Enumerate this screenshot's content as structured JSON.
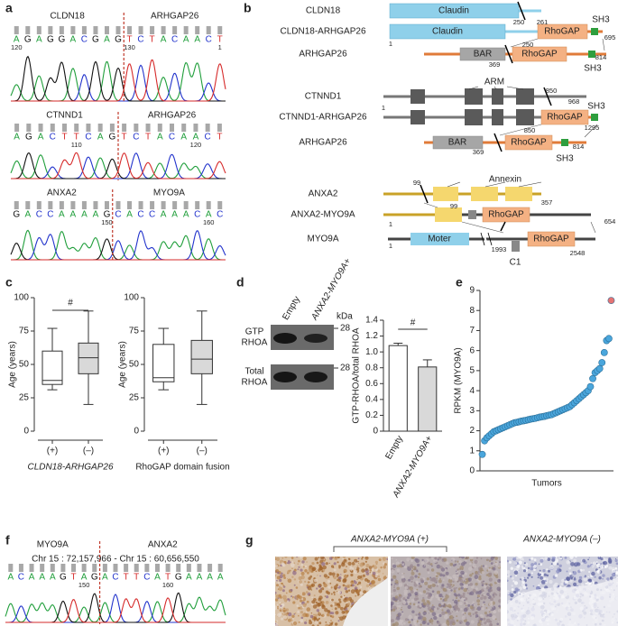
{
  "a": {
    "label": "a",
    "blocks": [
      {
        "left": "CLDN18",
        "right": "ARHGAP26",
        "sequence": [
          "A",
          "G",
          "A",
          "G",
          "G",
          "A",
          "C",
          "G",
          "A",
          "G",
          "T",
          "C",
          "T",
          "A",
          "C",
          "A",
          "A",
          "C",
          "T"
        ],
        "numbers": [
          "120",
          "130",
          "1"
        ]
      },
      {
        "left": "CTNND1",
        "right": "ARHGAP26",
        "sequence": [
          "A",
          "G",
          "A",
          "C",
          "T",
          "T",
          "C",
          "A",
          "G",
          "T",
          "C",
          "T",
          "A",
          "C",
          "A",
          "A",
          "C",
          "T"
        ],
        "numbers": [
          "110",
          "120"
        ]
      },
      {
        "left": "ANXA2",
        "right": "MYO9A",
        "sequence": [
          "G",
          "A",
          "C",
          "C",
          "A",
          "A",
          "A",
          "A",
          "G",
          "C",
          "A",
          "C",
          "C",
          "A",
          "A",
          "A",
          "C",
          "A",
          "C"
        ],
        "numbers": [
          "150",
          "160"
        ]
      }
    ]
  },
  "b": {
    "label": "b",
    "names": [
      "CLDN18",
      "CLDN18-ARHGAP26",
      "ARHGAP26",
      "CTNND1",
      "CTNND1-ARHGAP26",
      "ARHGAP26",
      "ANXA2",
      "ANXA2-MYO9A",
      "MYO9A"
    ],
    "domains": [
      "Claudin",
      "Claudin",
      "RhoGAP",
      "SH3",
      "BAR",
      "RhoGAP",
      "SH3",
      "ARM",
      "RhoGAP",
      "SH3",
      "BAR",
      "RhoGAP",
      "SH3",
      "Annexin",
      "RhoGAP",
      "Moter",
      "RhoGAP",
      "C1"
    ],
    "numbers": [
      "250",
      "261",
      "1",
      "250",
      "695",
      "369",
      "814",
      "850",
      "968",
      "1",
      "850",
      "1295",
      "369",
      "814",
      "99",
      "357",
      "99",
      "654",
      "1",
      "1",
      "1993",
      "2548"
    ]
  },
  "c": {
    "label": "c"
  },
  "d": {
    "label": "d",
    "blot": {
      "lanes": [
        "Empty",
        "ANXA2-MYO9A+"
      ],
      "unit": "kDa",
      "rows": [
        [
          "GTP",
          "RHOA"
        ],
        [
          "Total",
          "RHOA"
        ]
      ],
      "markers": [
        "28",
        "28"
      ]
    }
  },
  "e": {
    "label": "e"
  },
  "f": {
    "label": "f",
    "left": "MYO9A",
    "right": "ANXA2",
    "locus": "Chr 15 : 72,157,966 - Chr 15 : 60,656,550",
    "sequence": [
      "A",
      "C",
      "A",
      "A",
      "A",
      "G",
      "T",
      "A",
      "G",
      "A",
      "C",
      "T",
      "T",
      "C",
      "A",
      "T",
      "G",
      "A",
      "A",
      "A",
      "A"
    ],
    "numbers": [
      "150",
      "160"
    ]
  },
  "g": {
    "label": "g",
    "groups": [
      "ANXA2-MYO9A (+)",
      "ANXA2-MYO9A (–)"
    ]
  },
  "chart_data": [
    {
      "type": "box",
      "categories": [
        "(+)",
        "(–)"
      ],
      "xlabel": "CLDN18-ARHGAP26",
      "ylabel": "Age (years)",
      "ylim": [
        0,
        100
      ],
      "yticks": [
        0,
        25,
        50,
        75,
        100
      ],
      "colors": [
        "#ffffff",
        "#d9d9d9"
      ],
      "annotation": "#",
      "boxes": [
        {
          "min": 31,
          "q1": 35,
          "median": 38,
          "q3": 60,
          "max": 77
        },
        {
          "min": 20,
          "q1": 43,
          "median": 55,
          "q3": 66,
          "max": 90
        }
      ]
    },
    {
      "type": "box",
      "categories": [
        "(+)",
        "(–)"
      ],
      "xlabel": "RhoGAP domain fusion",
      "ylabel": "Age (years)",
      "ylim": [
        0,
        100
      ],
      "yticks": [
        0,
        25,
        50,
        75,
        100
      ],
      "colors": [
        "#ffffff",
        "#d9d9d9"
      ],
      "boxes": [
        {
          "min": 31,
          "q1": 37,
          "median": 40,
          "q3": 65,
          "max": 77
        },
        {
          "min": 20,
          "q1": 43,
          "median": 54,
          "q3": 68,
          "max": 90
        }
      ]
    },
    {
      "type": "bar",
      "categories": [
        "Empty",
        "ANXA2-MYO9A+"
      ],
      "values": [
        1.08,
        0.81
      ],
      "errors": [
        0.03,
        0.09
      ],
      "colors": [
        "#ffffff",
        "#d9d9d9"
      ],
      "ylabel": "GTP-RHOA/total RHOA",
      "ylim": [
        0,
        1.4
      ],
      "yticks": [
        0,
        0.2,
        0.4,
        0.6,
        0.8,
        {
          "value": 1,
          "label": "1.0"
        },
        1.2,
        1.4
      ],
      "annotation": "#"
    },
    {
      "type": "scatter",
      "xlabel": "Tumors",
      "ylabel": "RPKM (MYO9A)",
      "xlim": [
        0,
        58
      ],
      "ylim": [
        0,
        9
      ],
      "yticks": [
        0,
        1,
        2,
        3,
        4,
        5,
        6,
        7,
        8,
        9
      ],
      "series": [
        {
          "color": "#4aa6dc",
          "x": [
            1,
            2,
            3,
            4,
            5,
            6,
            7,
            8,
            9,
            10,
            11,
            12,
            13,
            14,
            15,
            16,
            17,
            18,
            19,
            20,
            21,
            22,
            23,
            24,
            25,
            26,
            27,
            28,
            29,
            30,
            31,
            32,
            33,
            34,
            35,
            36,
            37,
            38,
            39,
            40,
            41,
            42,
            43,
            44,
            45,
            46,
            47,
            48,
            49,
            50,
            51,
            52,
            53,
            54,
            55,
            56
          ],
          "values": [
            0.82,
            1.5,
            1.65,
            1.75,
            1.85,
            1.95,
            2.0,
            2.05,
            2.1,
            2.15,
            2.2,
            2.25,
            2.3,
            2.35,
            2.4,
            2.42,
            2.45,
            2.48,
            2.5,
            2.52,
            2.55,
            2.58,
            2.6,
            2.62,
            2.65,
            2.68,
            2.7,
            2.72,
            2.75,
            2.78,
            2.8,
            2.85,
            2.9,
            2.95,
            3.0,
            3.05,
            3.1,
            3.15,
            3.2,
            3.3,
            3.4,
            3.5,
            3.6,
            3.7,
            3.8,
            3.9,
            4.0,
            4.2,
            4.6,
            4.9,
            5.0,
            5.1,
            5.4,
            5.9,
            6.5,
            6.6
          ]
        },
        {
          "color": "#e57373",
          "x": [
            57
          ],
          "values": [
            8.5
          ]
        }
      ]
    }
  ]
}
